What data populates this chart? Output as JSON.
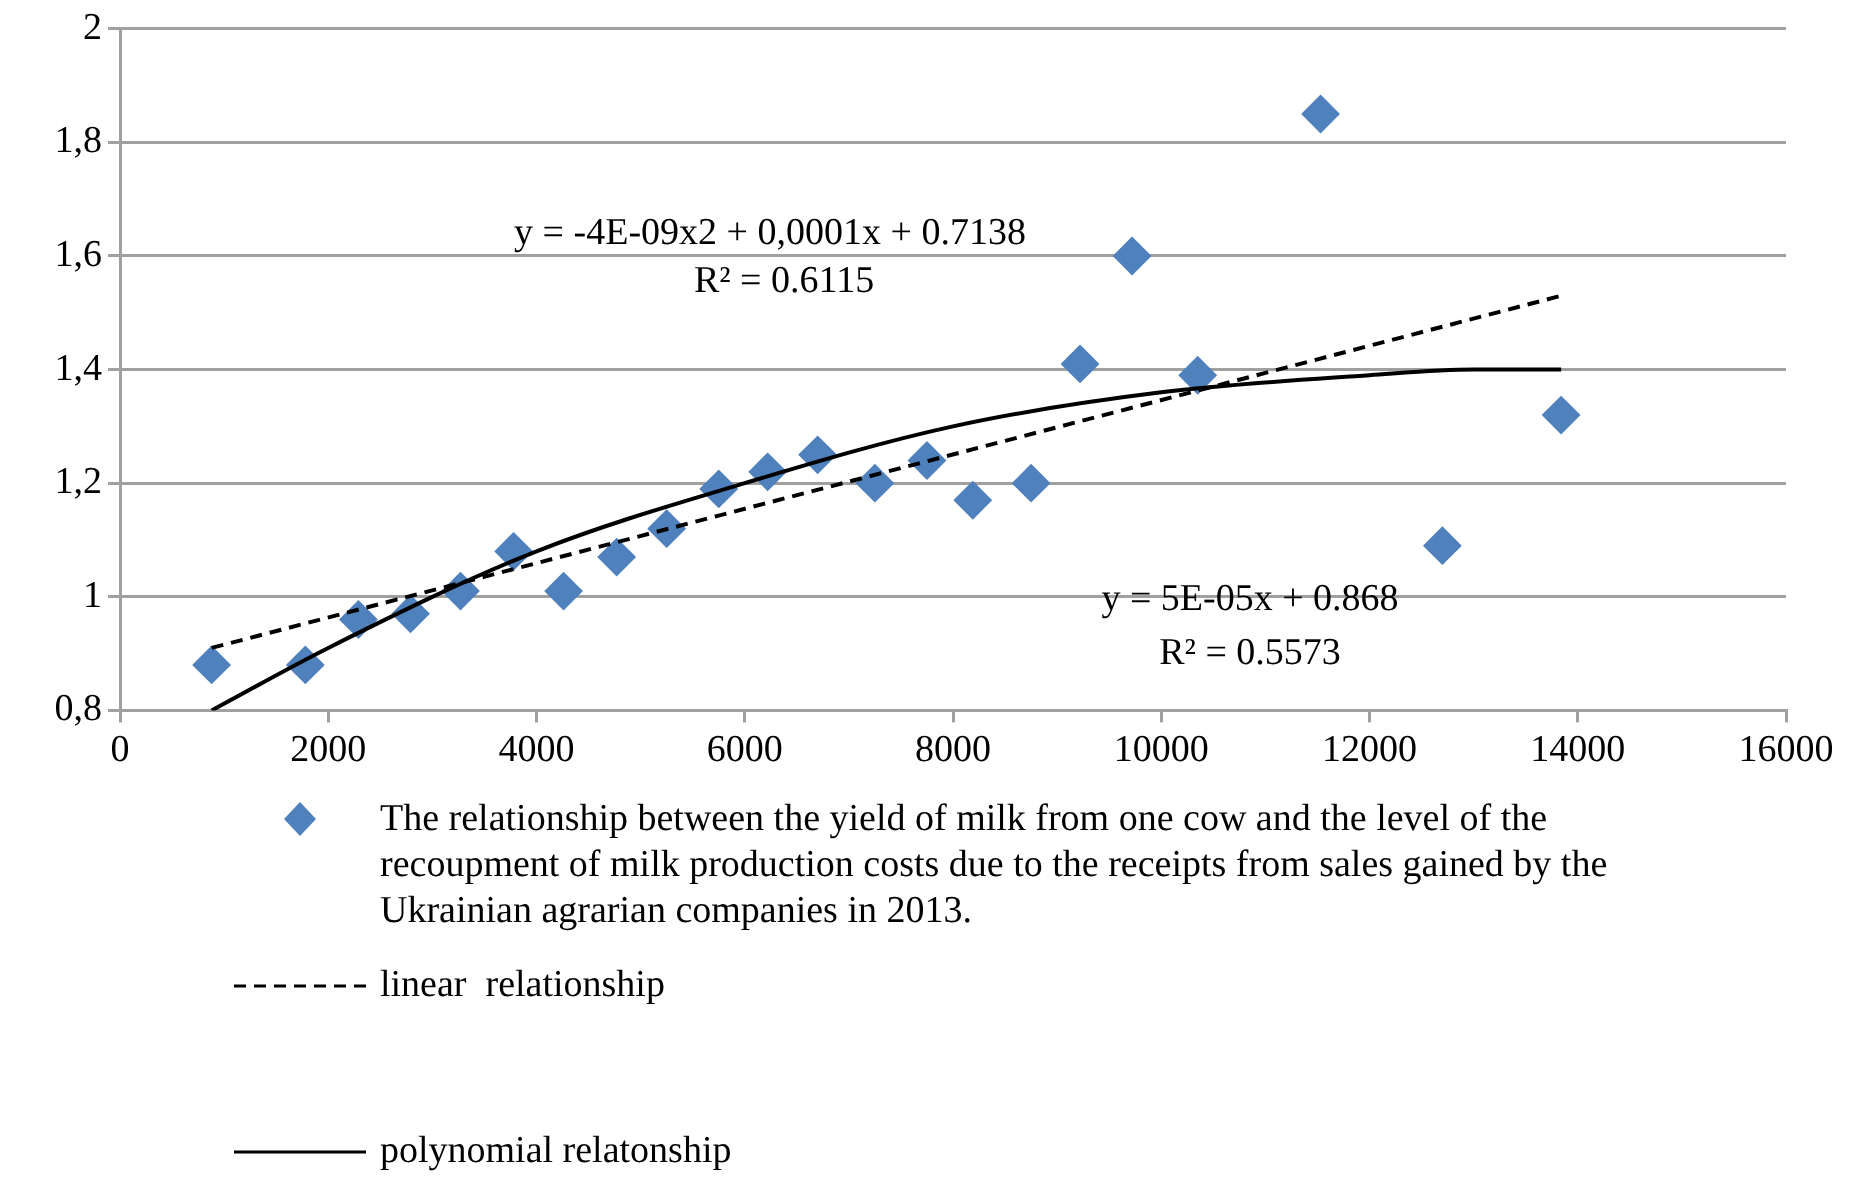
{
  "chart_data": {
    "type": "scatter",
    "legend": "bottom",
    "grid": "y",
    "xlim": [
      0,
      16000
    ],
    "xticks": [
      0,
      2000,
      4000,
      6000,
      8000,
      10000,
      12000,
      14000,
      16000
    ],
    "ylim": [
      0.8,
      2
    ],
    "yticks": [
      {
        "value": 0.8,
        "label": "0,8"
      },
      1,
      {
        "value": 1.2,
        "label": "1,2"
      },
      {
        "value": 1.4,
        "label": "1,4"
      },
      {
        "value": 1.6,
        "label": "1,6"
      },
      {
        "value": 1.8,
        "label": "1,8"
      },
      2
    ],
    "series": [
      {
        "type": "scatter",
        "name": "The relationship between the yield of milk from one cow and the level of the recoupment of milk production costs due to the receipts from sales gained by the Ukrainian agrarian companies in 2013.",
        "color": "#4f81bd",
        "marker": "diamond",
        "x": [
          880,
          1780,
          2290,
          2790,
          3270,
          3780,
          4260,
          4770,
          5250,
          5750,
          6220,
          6700,
          7250,
          7750,
          8190,
          8750,
          9220,
          9720,
          10350,
          11530,
          12700,
          13840
        ],
        "values": [
          0.88,
          0.88,
          0.96,
          0.97,
          1.01,
          1.08,
          1.01,
          1.07,
          1.12,
          1.19,
          1.22,
          1.25,
          1.2,
          1.24,
          1.17,
          1.2,
          1.41,
          1.6,
          1.39,
          1.85,
          1.09,
          1.32
        ]
      },
      {
        "type": "line",
        "name": "linear  relationship",
        "color": "#000000",
        "marker": "none",
        "line_style": "dashed",
        "x": [
          880,
          13840
        ],
        "values": [
          0.91,
          1.53
        ]
      },
      {
        "type": "line",
        "name": "polynomial relatonship",
        "color": "#000000",
        "marker": "none",
        "line_style": "solid",
        "x": [
          880,
          2000,
          4000,
          6000,
          8000,
          10000,
          12000,
          13000,
          13840
        ],
        "values": [
          0.8,
          0.91,
          1.08,
          1.2,
          1.3,
          1.36,
          1.39,
          1.4,
          1.4
        ]
      }
    ],
    "annotations": [
      "y = -4E-09x2 + 0,0001x + 0.7138",
      "R² = 0.6115",
      "y = 5E-05x + 0.868",
      "R² = 0.5573"
    ]
  }
}
